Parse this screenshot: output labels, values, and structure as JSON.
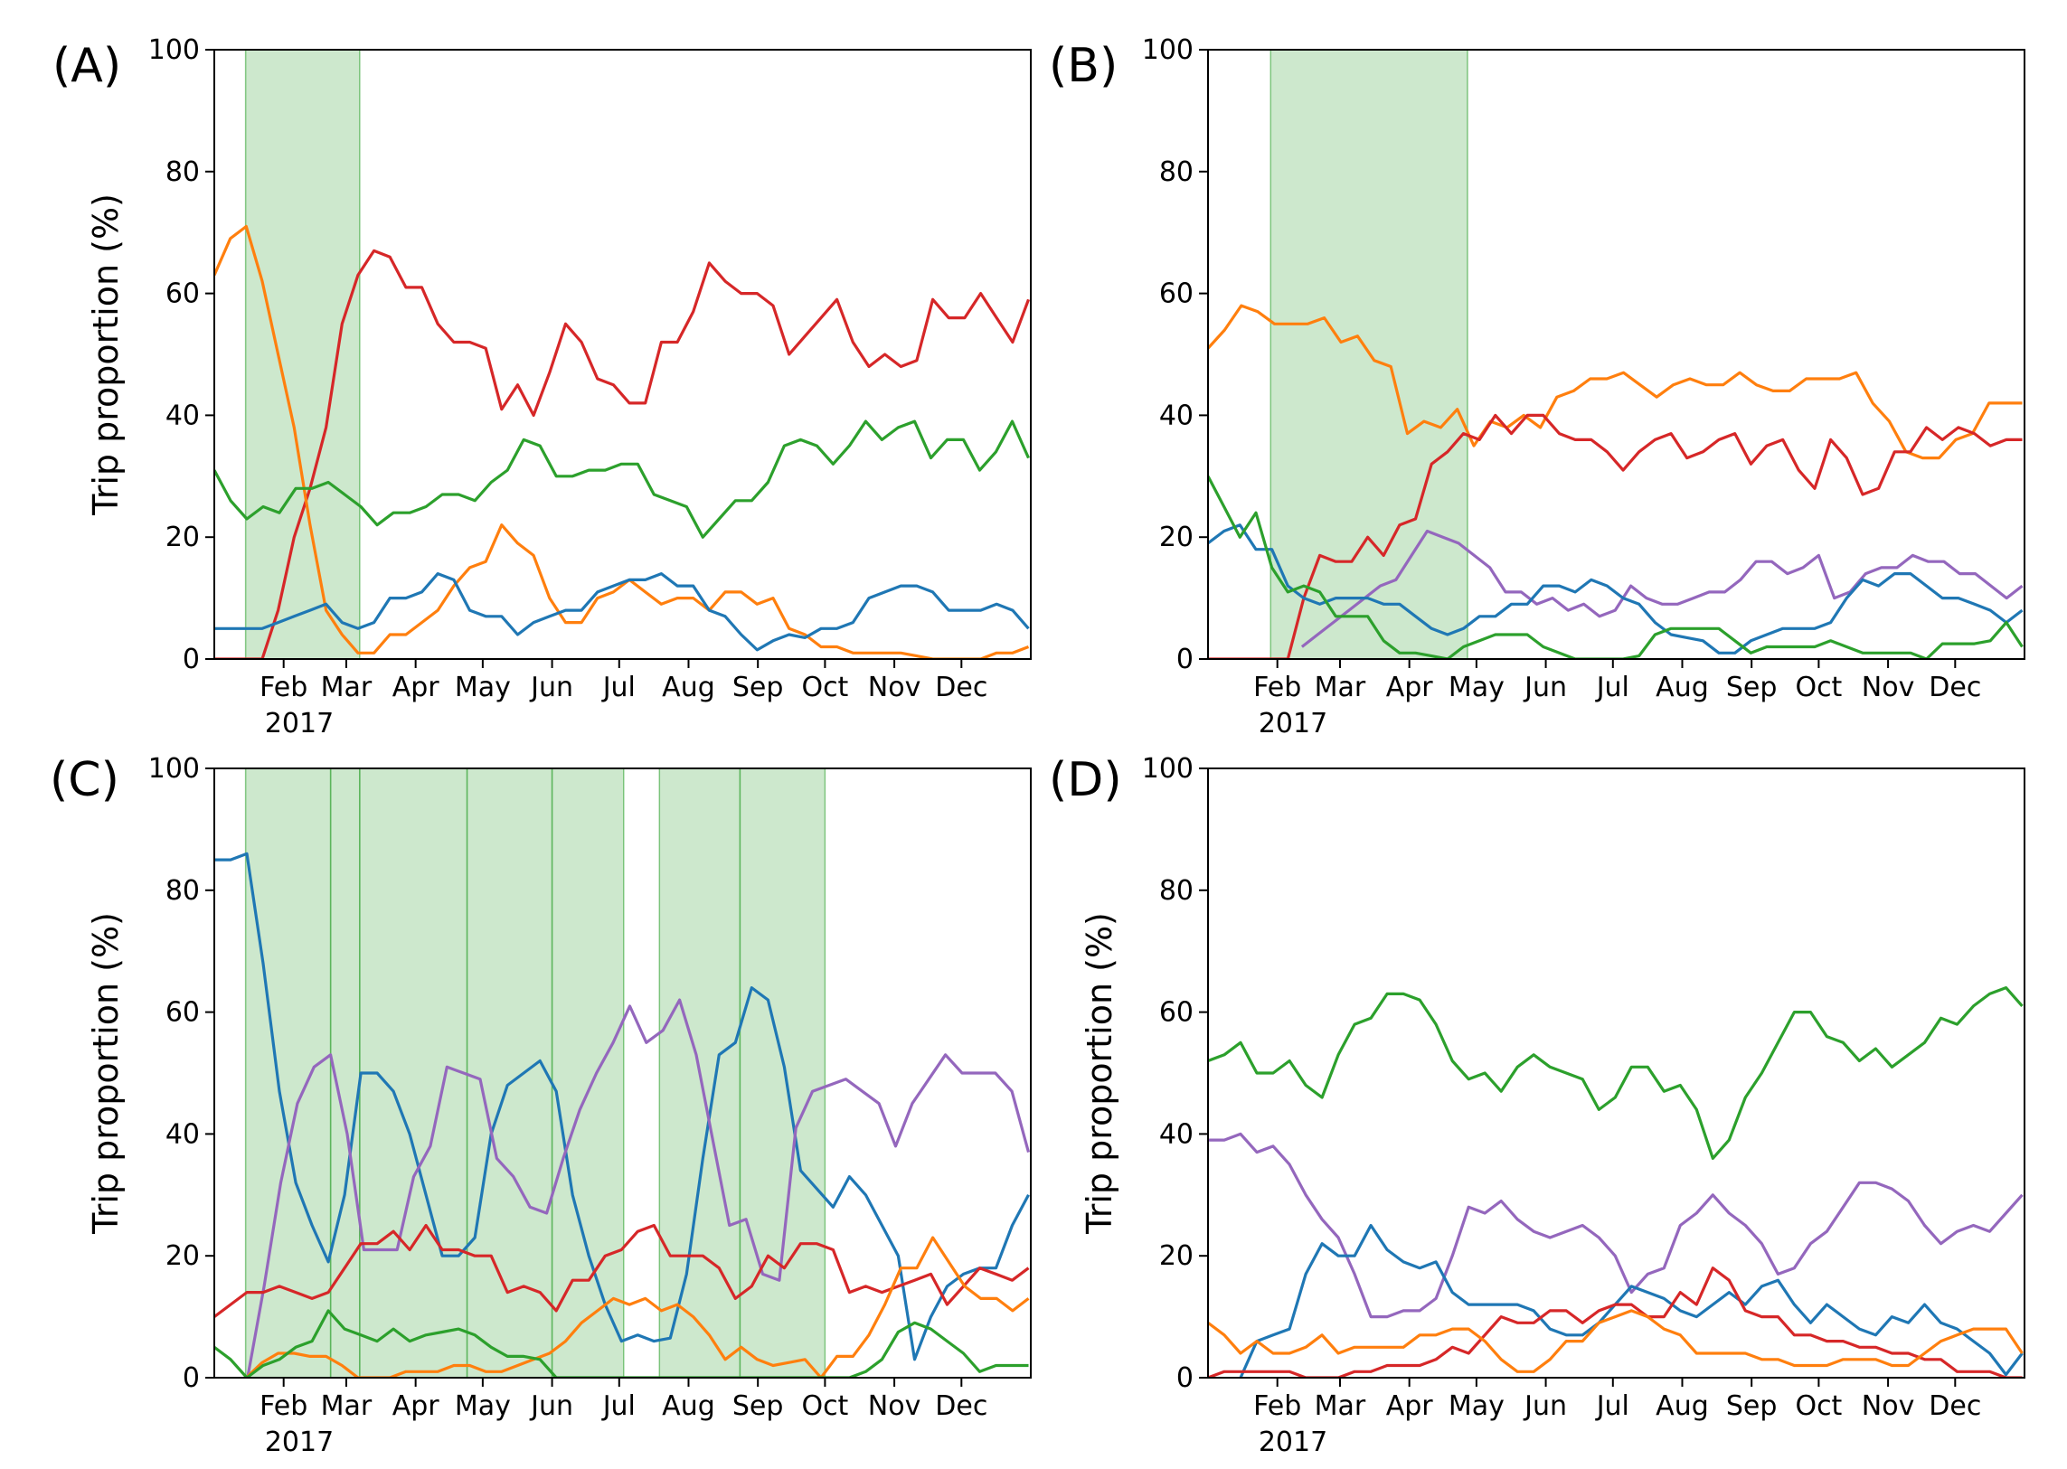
{
  "chart_data": [
    {
      "panel_label": "(A)",
      "type": "line",
      "ylabel": "Trip proportion (%)",
      "ylim": [
        0,
        100
      ],
      "yticks": [
        "0",
        "20",
        "40",
        "60",
        "80",
        "100"
      ],
      "xlim": [
        "2017-01-01",
        "2017-12-31"
      ],
      "month_ticks": [
        "Feb",
        "Mar",
        "Apr",
        "May",
        "Jun",
        "Jul",
        "Aug",
        "Sep",
        "Oct",
        "Nov",
        "Dec"
      ],
      "year_label": "2017",
      "grid": false,
      "shaded_periods": [
        [
          "2017-01-15",
          "2017-03-07"
        ]
      ],
      "series": [
        {
          "color": "#d62728",
          "y": [
            0,
            0,
            0,
            0,
            8,
            20,
            28,
            38,
            55,
            63,
            67,
            66,
            61,
            61,
            55,
            52,
            52,
            51,
            41,
            45,
            40,
            47,
            55,
            52,
            46,
            45,
            42,
            42,
            52,
            52,
            57,
            65,
            62,
            60,
            60,
            58,
            50,
            53,
            56,
            59,
            52,
            48,
            50,
            48,
            49,
            59,
            56,
            56,
            60,
            56,
            52,
            59
          ]
        },
        {
          "color": "#ff7f0e",
          "y": [
            63,
            69,
            71,
            62,
            50,
            38,
            22,
            8,
            4,
            1,
            1,
            4,
            4,
            6,
            8,
            12,
            15,
            16,
            22,
            19,
            17,
            10,
            6,
            6,
            10,
            11,
            13,
            11,
            9,
            10,
            10,
            8,
            11,
            11,
            9,
            10,
            5,
            4,
            2,
            2,
            1,
            1,
            1,
            1,
            0.5,
            0,
            0,
            0,
            0,
            1,
            1,
            2
          ]
        },
        {
          "color": "#2ca02c",
          "y": [
            31,
            26,
            23,
            25,
            24,
            28,
            28,
            29,
            27,
            25,
            22,
            24,
            24,
            25,
            27,
            27,
            26,
            29,
            31,
            36,
            35,
            30,
            30,
            31,
            31,
            32,
            32,
            27,
            26,
            25,
            20,
            23,
            26,
            26,
            29,
            35,
            36,
            35,
            32,
            35,
            39,
            36,
            38,
            39,
            33,
            36,
            36,
            31,
            34,
            39,
            33
          ]
        },
        {
          "color": "#1f77b4",
          "y": [
            5,
            5,
            5,
            5,
            6,
            7,
            8,
            9,
            6,
            5,
            6,
            10,
            10,
            11,
            14,
            13,
            8,
            7,
            7,
            4,
            6,
            7,
            8,
            8,
            11,
            12,
            13,
            13,
            14,
            12,
            12,
            8,
            7,
            4,
            1.5,
            3,
            4,
            3.5,
            5,
            5,
            6,
            10,
            11,
            12,
            12,
            11,
            8,
            8,
            8,
            9,
            8,
            5
          ]
        }
      ]
    },
    {
      "panel_label": "(B)",
      "type": "line",
      "ylabel": "",
      "ylim": [
        0,
        100
      ],
      "yticks": [
        "0",
        "20",
        "40",
        "60",
        "80",
        "100"
      ],
      "xlim": [
        "2017-01-01",
        "2017-12-31"
      ],
      "month_ticks": [
        "Feb",
        "Mar",
        "Apr",
        "May",
        "Jun",
        "Jul",
        "Aug",
        "Sep",
        "Oct",
        "Nov",
        "Dec"
      ],
      "year_label": "2017",
      "grid": false,
      "shaded_periods": [
        [
          "2017-01-29",
          "2017-04-27"
        ]
      ],
      "series": [
        {
          "color": "#ff7f0e",
          "y": [
            51,
            54,
            58,
            57,
            55,
            55,
            55,
            56,
            52,
            53,
            49,
            48,
            37,
            39,
            38,
            41,
            35,
            39,
            38,
            40,
            38,
            43,
            44,
            46,
            46,
            47,
            45,
            43,
            45,
            46,
            45,
            45,
            47,
            45,
            44,
            44,
            46,
            46,
            46,
            47,
            42,
            39,
            34,
            33,
            33,
            36,
            37,
            42,
            42,
            42
          ]
        },
        {
          "color": "#d62728",
          "y": [
            0,
            0,
            0,
            0,
            0,
            0,
            10,
            17,
            16,
            16,
            20,
            17,
            22,
            23,
            32,
            34,
            37,
            36,
            40,
            37,
            40,
            40,
            37,
            36,
            36,
            34,
            31,
            34,
            36,
            37,
            33,
            34,
            36,
            37,
            32,
            35,
            36,
            31,
            28,
            36,
            33,
            27,
            28,
            34,
            34,
            38,
            36,
            38,
            37,
            35,
            36,
            36
          ]
        },
        {
          "color": "#9467bd",
          "y": [
            null,
            null,
            null,
            null,
            null,
            null,
            2,
            4,
            6,
            8,
            10,
            12,
            13,
            17,
            21,
            20,
            19,
            17,
            15,
            11,
            11,
            9,
            10,
            8,
            9,
            7,
            8,
            12,
            10,
            9,
            9,
            10,
            11,
            11,
            13,
            16,
            16,
            14,
            15,
            17,
            10,
            11,
            14,
            15,
            15,
            17,
            16,
            16,
            14,
            14,
            12,
            10,
            12
          ]
        },
        {
          "color": "#1f77b4",
          "y": [
            19,
            21,
            22,
            18,
            18,
            12,
            10,
            9,
            10,
            10,
            10,
            9,
            9,
            7,
            5,
            4,
            5,
            7,
            7,
            9,
            9,
            12,
            12,
            11,
            13,
            12,
            10,
            9,
            6,
            4,
            3.5,
            3,
            1,
            1,
            3,
            4,
            5,
            5,
            5,
            6,
            10,
            13,
            12,
            14,
            14,
            12,
            10,
            10,
            9,
            8,
            6,
            8
          ]
        },
        {
          "color": "#2ca02c",
          "y": [
            30,
            25,
            20,
            24,
            15,
            11,
            12,
            11,
            7,
            7,
            7,
            3,
            1,
            1,
            0.5,
            0,
            2,
            3,
            4,
            4,
            4,
            2,
            1,
            0,
            0,
            0,
            0,
            0.5,
            4,
            5,
            5,
            5,
            5,
            3,
            1,
            2,
            2,
            2,
            2,
            3,
            2,
            1,
            1,
            1,
            1,
            0,
            2.5,
            2.5,
            2.5,
            3,
            6,
            2
          ]
        }
      ]
    },
    {
      "panel_label": "(C)",
      "type": "line",
      "ylabel": "Trip proportion (%)",
      "ylim": [
        0,
        100
      ],
      "yticks": [
        "0",
        "20",
        "40",
        "60",
        "80",
        "100"
      ],
      "xlim": [
        "2017-01-01",
        "2017-12-31"
      ],
      "month_ticks": [
        "Feb",
        "Mar",
        "Apr",
        "May",
        "Jun",
        "Jul",
        "Aug",
        "Sep",
        "Oct",
        "Nov",
        "Dec"
      ],
      "year_label": "2017",
      "grid": false,
      "shaded_periods": [
        [
          "2017-01-15",
          "2017-07-03"
        ],
        [
          "2017-07-19",
          "2017-10-01"
        ]
      ],
      "period_dividers": [
        "2017-02-22",
        "2017-03-07",
        "2017-04-24",
        "2017-06-01",
        "2017-08-24"
      ],
      "series": [
        {
          "color": "#1f77b4",
          "y": [
            85,
            85,
            86,
            68,
            47,
            32,
            25,
            19,
            30,
            50,
            50,
            47,
            40,
            30,
            20,
            20,
            23,
            40,
            48,
            50,
            52,
            47,
            30,
            20,
            12,
            6,
            7,
            6,
            6.5,
            17,
            36,
            53,
            55,
            64,
            62,
            51,
            34,
            31,
            28,
            33,
            30,
            25,
            20,
            3,
            10,
            15,
            17,
            18,
            18,
            25,
            30
          ]
        },
        {
          "color": "#9467bd",
          "y": [
            null,
            null,
            0,
            15,
            32,
            45,
            51,
            53,
            40,
            21,
            21,
            21,
            33,
            38,
            51,
            50,
            49,
            36,
            33,
            28,
            27,
            36,
            44,
            50,
            55,
            61,
            55,
            57,
            62,
            53,
            39,
            25,
            26,
            17,
            16,
            41,
            47,
            48,
            49,
            47,
            45,
            38,
            45,
            49,
            53,
            50,
            50,
            50,
            47,
            37
          ]
        },
        {
          "color": "#d62728",
          "y": [
            10,
            12,
            14,
            14,
            15,
            14,
            13,
            14,
            18,
            22,
            22,
            24,
            21,
            25,
            21,
            21,
            20,
            20,
            14,
            15,
            14,
            11,
            16,
            16,
            20,
            21,
            24,
            25,
            20,
            20,
            20,
            18,
            13,
            15,
            20,
            18,
            22,
            22,
            21,
            14,
            15,
            14,
            15,
            16,
            17,
            12,
            15,
            18,
            17,
            16,
            18
          ]
        },
        {
          "color": "#ff7f0e",
          "y": [
            null,
            null,
            0,
            2.5,
            4,
            4,
            3.5,
            3.5,
            2,
            0,
            0,
            0,
            1,
            1,
            1,
            2,
            2,
            1,
            1,
            2,
            3,
            4,
            6,
            9,
            11,
            13,
            12,
            13,
            11,
            12,
            10,
            7,
            3,
            5,
            3,
            2,
            2.5,
            3,
            0,
            3.5,
            3.5,
            7,
            12,
            18,
            18,
            23,
            19,
            15,
            13,
            13,
            11,
            13
          ]
        },
        {
          "color": "#2ca02c",
          "y": [
            5,
            3,
            0,
            2,
            3,
            5,
            6,
            11,
            8,
            7,
            6,
            8,
            6,
            7,
            7.5,
            8,
            7,
            5,
            3.5,
            3.5,
            3,
            0,
            0,
            0,
            0,
            0,
            0,
            0,
            0,
            0,
            0,
            0,
            0,
            0,
            0,
            0,
            0,
            0,
            0,
            0,
            1,
            3,
            7.5,
            9,
            8,
            6,
            4,
            1,
            2,
            2,
            2
          ]
        }
      ]
    },
    {
      "panel_label": "(D)",
      "type": "line",
      "ylabel": "Trip proportion (%)",
      "ylim": [
        0,
        100
      ],
      "yticks": [
        "0",
        "20",
        "40",
        "60",
        "80",
        "100"
      ],
      "xlim": [
        "2017-01-01",
        "2017-12-31"
      ],
      "month_ticks": [
        "Feb",
        "Mar",
        "Apr",
        "May",
        "Jun",
        "Jul",
        "Aug",
        "Sep",
        "Oct",
        "Nov",
        "Dec"
      ],
      "year_label": "2017",
      "grid": false,
      "shaded_periods": [],
      "series": [
        {
          "color": "#2ca02c",
          "y": [
            52,
            53,
            55,
            50,
            50,
            52,
            48,
            46,
            53,
            58,
            59,
            63,
            63,
            62,
            58,
            52,
            49,
            50,
            47,
            51,
            53,
            51,
            50,
            49,
            44,
            46,
            51,
            51,
            47,
            48,
            44,
            36,
            39,
            46,
            50,
            55,
            60,
            60,
            56,
            55,
            52,
            54,
            51,
            53,
            55,
            59,
            58,
            61,
            63,
            64,
            61
          ]
        },
        {
          "color": "#9467bd",
          "y": [
            39,
            39,
            40,
            37,
            38,
            35,
            30,
            26,
            23,
            17,
            10,
            10,
            11,
            11,
            13,
            20,
            28,
            27,
            29,
            26,
            24,
            23,
            24,
            25,
            23,
            20,
            14,
            17,
            18,
            25,
            27,
            30,
            27,
            25,
            22,
            17,
            18,
            22,
            24,
            28,
            32,
            32,
            31,
            29,
            25,
            22,
            24,
            25,
            24,
            27,
            30
          ]
        },
        {
          "color": "#1f77b4",
          "y": [
            null,
            null,
            0,
            6,
            7,
            8,
            17,
            22,
            20,
            20,
            25,
            21,
            19,
            18,
            19,
            14,
            12,
            12,
            12,
            12,
            11,
            8,
            7,
            7,
            9,
            12,
            15,
            14,
            13,
            11,
            10,
            12,
            14,
            12,
            15,
            16,
            12,
            9,
            12,
            10,
            8,
            7,
            10,
            9,
            12,
            9,
            8,
            6,
            4,
            0.5,
            4
          ]
        },
        {
          "color": "#d62728",
          "y": [
            0,
            1,
            1,
            1,
            1,
            1,
            0,
            0,
            0,
            1,
            1,
            2,
            2,
            2,
            3,
            5,
            4,
            7,
            10,
            9,
            9,
            11,
            11,
            9,
            11,
            12,
            12,
            10,
            10,
            14,
            12,
            18,
            16,
            11,
            10,
            10,
            7,
            7,
            6,
            6,
            5,
            5,
            4,
            4,
            3,
            3,
            1,
            1,
            1,
            0,
            0
          ]
        },
        {
          "color": "#ff7f0e",
          "y": [
            9,
            7,
            4,
            6,
            4,
            4,
            5,
            7,
            4,
            5,
            5,
            5,
            5,
            7,
            7,
            8,
            8,
            6,
            3,
            1,
            1,
            3,
            6,
            6,
            9,
            10,
            11,
            10,
            8,
            7,
            4,
            4,
            4,
            4,
            3,
            3,
            2,
            2,
            2,
            3,
            3,
            3,
            2,
            2,
            4,
            6,
            7,
            8,
            8,
            8,
            4
          ]
        }
      ]
    }
  ]
}
